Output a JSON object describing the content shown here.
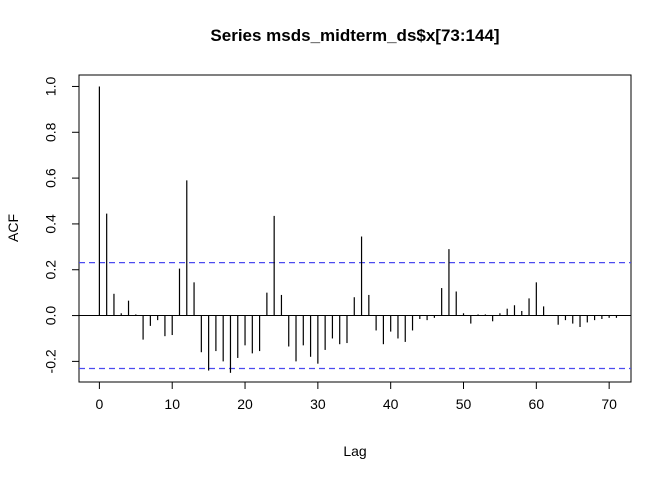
{
  "chart_data": {
    "type": "bar",
    "title": "Series  msds_midterm_ds$x[73:144]",
    "xlabel": "Lag",
    "ylabel": "ACF",
    "xlim": [
      -2.8,
      73.0
    ],
    "ylim": [
      -0.29,
      1.05
    ],
    "x_ticks": [
      0,
      10,
      20,
      30,
      40,
      50,
      60,
      70
    ],
    "y_ticks": [
      -0.2,
      0.0,
      0.2,
      0.4,
      0.6,
      0.8,
      1.0
    ],
    "y_tick_labels": [
      "-0.2",
      "0.0",
      "0.2",
      "0.4",
      "0.6",
      "0.8",
      "1.0"
    ],
    "confidence_bound": 0.231,
    "ci_color": "#4b4bf0",
    "bar_color": "#000000",
    "series": [
      {
        "lags": [
          0,
          1,
          2,
          3,
          4,
          5,
          6,
          7,
          8,
          9,
          10,
          11,
          12,
          13,
          14,
          15,
          16,
          17,
          18,
          19,
          20,
          21,
          22,
          23,
          24,
          25,
          26,
          27,
          28,
          29,
          30,
          31,
          32,
          33,
          34,
          35,
          36,
          37,
          38,
          39,
          40,
          41,
          42,
          43,
          44,
          45,
          46,
          47,
          48,
          49,
          50,
          51,
          52,
          53,
          54,
          55,
          56,
          57,
          58,
          59,
          60,
          61,
          62,
          63,
          64,
          65,
          66,
          67,
          68,
          69,
          70,
          71
        ],
        "values": [
          1.0,
          0.445,
          0.095,
          0.01,
          0.065,
          0.005,
          -0.105,
          -0.045,
          -0.02,
          -0.09,
          -0.085,
          0.205,
          0.59,
          0.145,
          -0.16,
          -0.24,
          -0.155,
          -0.2,
          -0.25,
          -0.185,
          -0.13,
          -0.165,
          -0.155,
          0.1,
          0.435,
          0.09,
          -0.135,
          -0.2,
          -0.13,
          -0.18,
          -0.21,
          -0.15,
          -0.1,
          -0.125,
          -0.12,
          0.08,
          0.345,
          0.09,
          -0.065,
          -0.125,
          -0.07,
          -0.1,
          -0.115,
          -0.065,
          -0.015,
          -0.02,
          -0.01,
          0.12,
          0.29,
          0.105,
          0.01,
          -0.035,
          0.005,
          0.005,
          -0.025,
          0.01,
          0.03,
          0.045,
          0.02,
          0.075,
          0.145,
          0.04,
          0.0,
          -0.04,
          -0.02,
          -0.035,
          -0.05,
          -0.03,
          -0.02,
          -0.015,
          -0.01,
          -0.01
        ]
      }
    ]
  }
}
